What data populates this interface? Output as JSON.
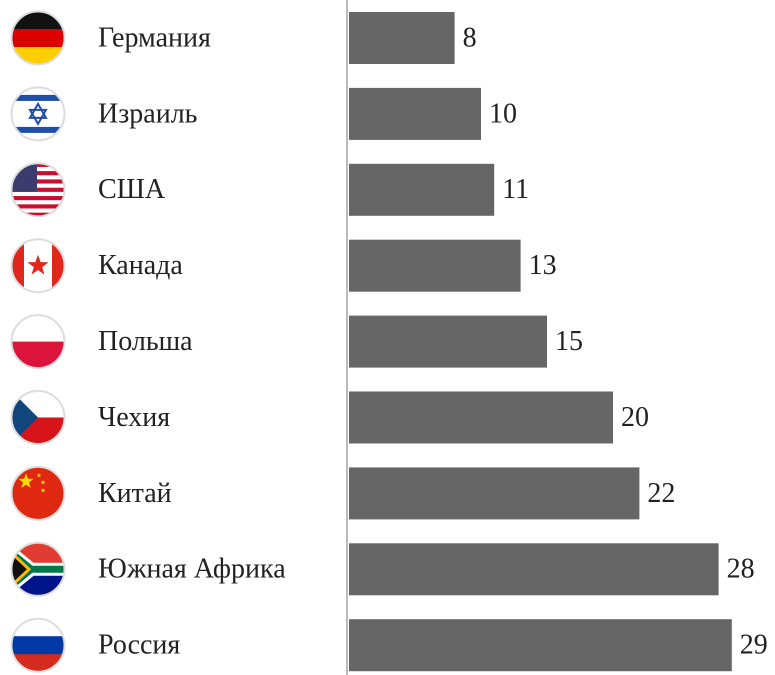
{
  "chart_data": {
    "type": "bar",
    "orientation": "horizontal",
    "categories": [
      "Германия",
      "Израиль",
      "США",
      "Канада",
      "Польша",
      "Чехия",
      "Китай",
      "Южная Африка",
      "Россия"
    ],
    "values": [
      8,
      10,
      11,
      13,
      15,
      20,
      22,
      28,
      29
    ],
    "color": "#666666",
    "xlim": [
      0,
      30
    ]
  }
}
